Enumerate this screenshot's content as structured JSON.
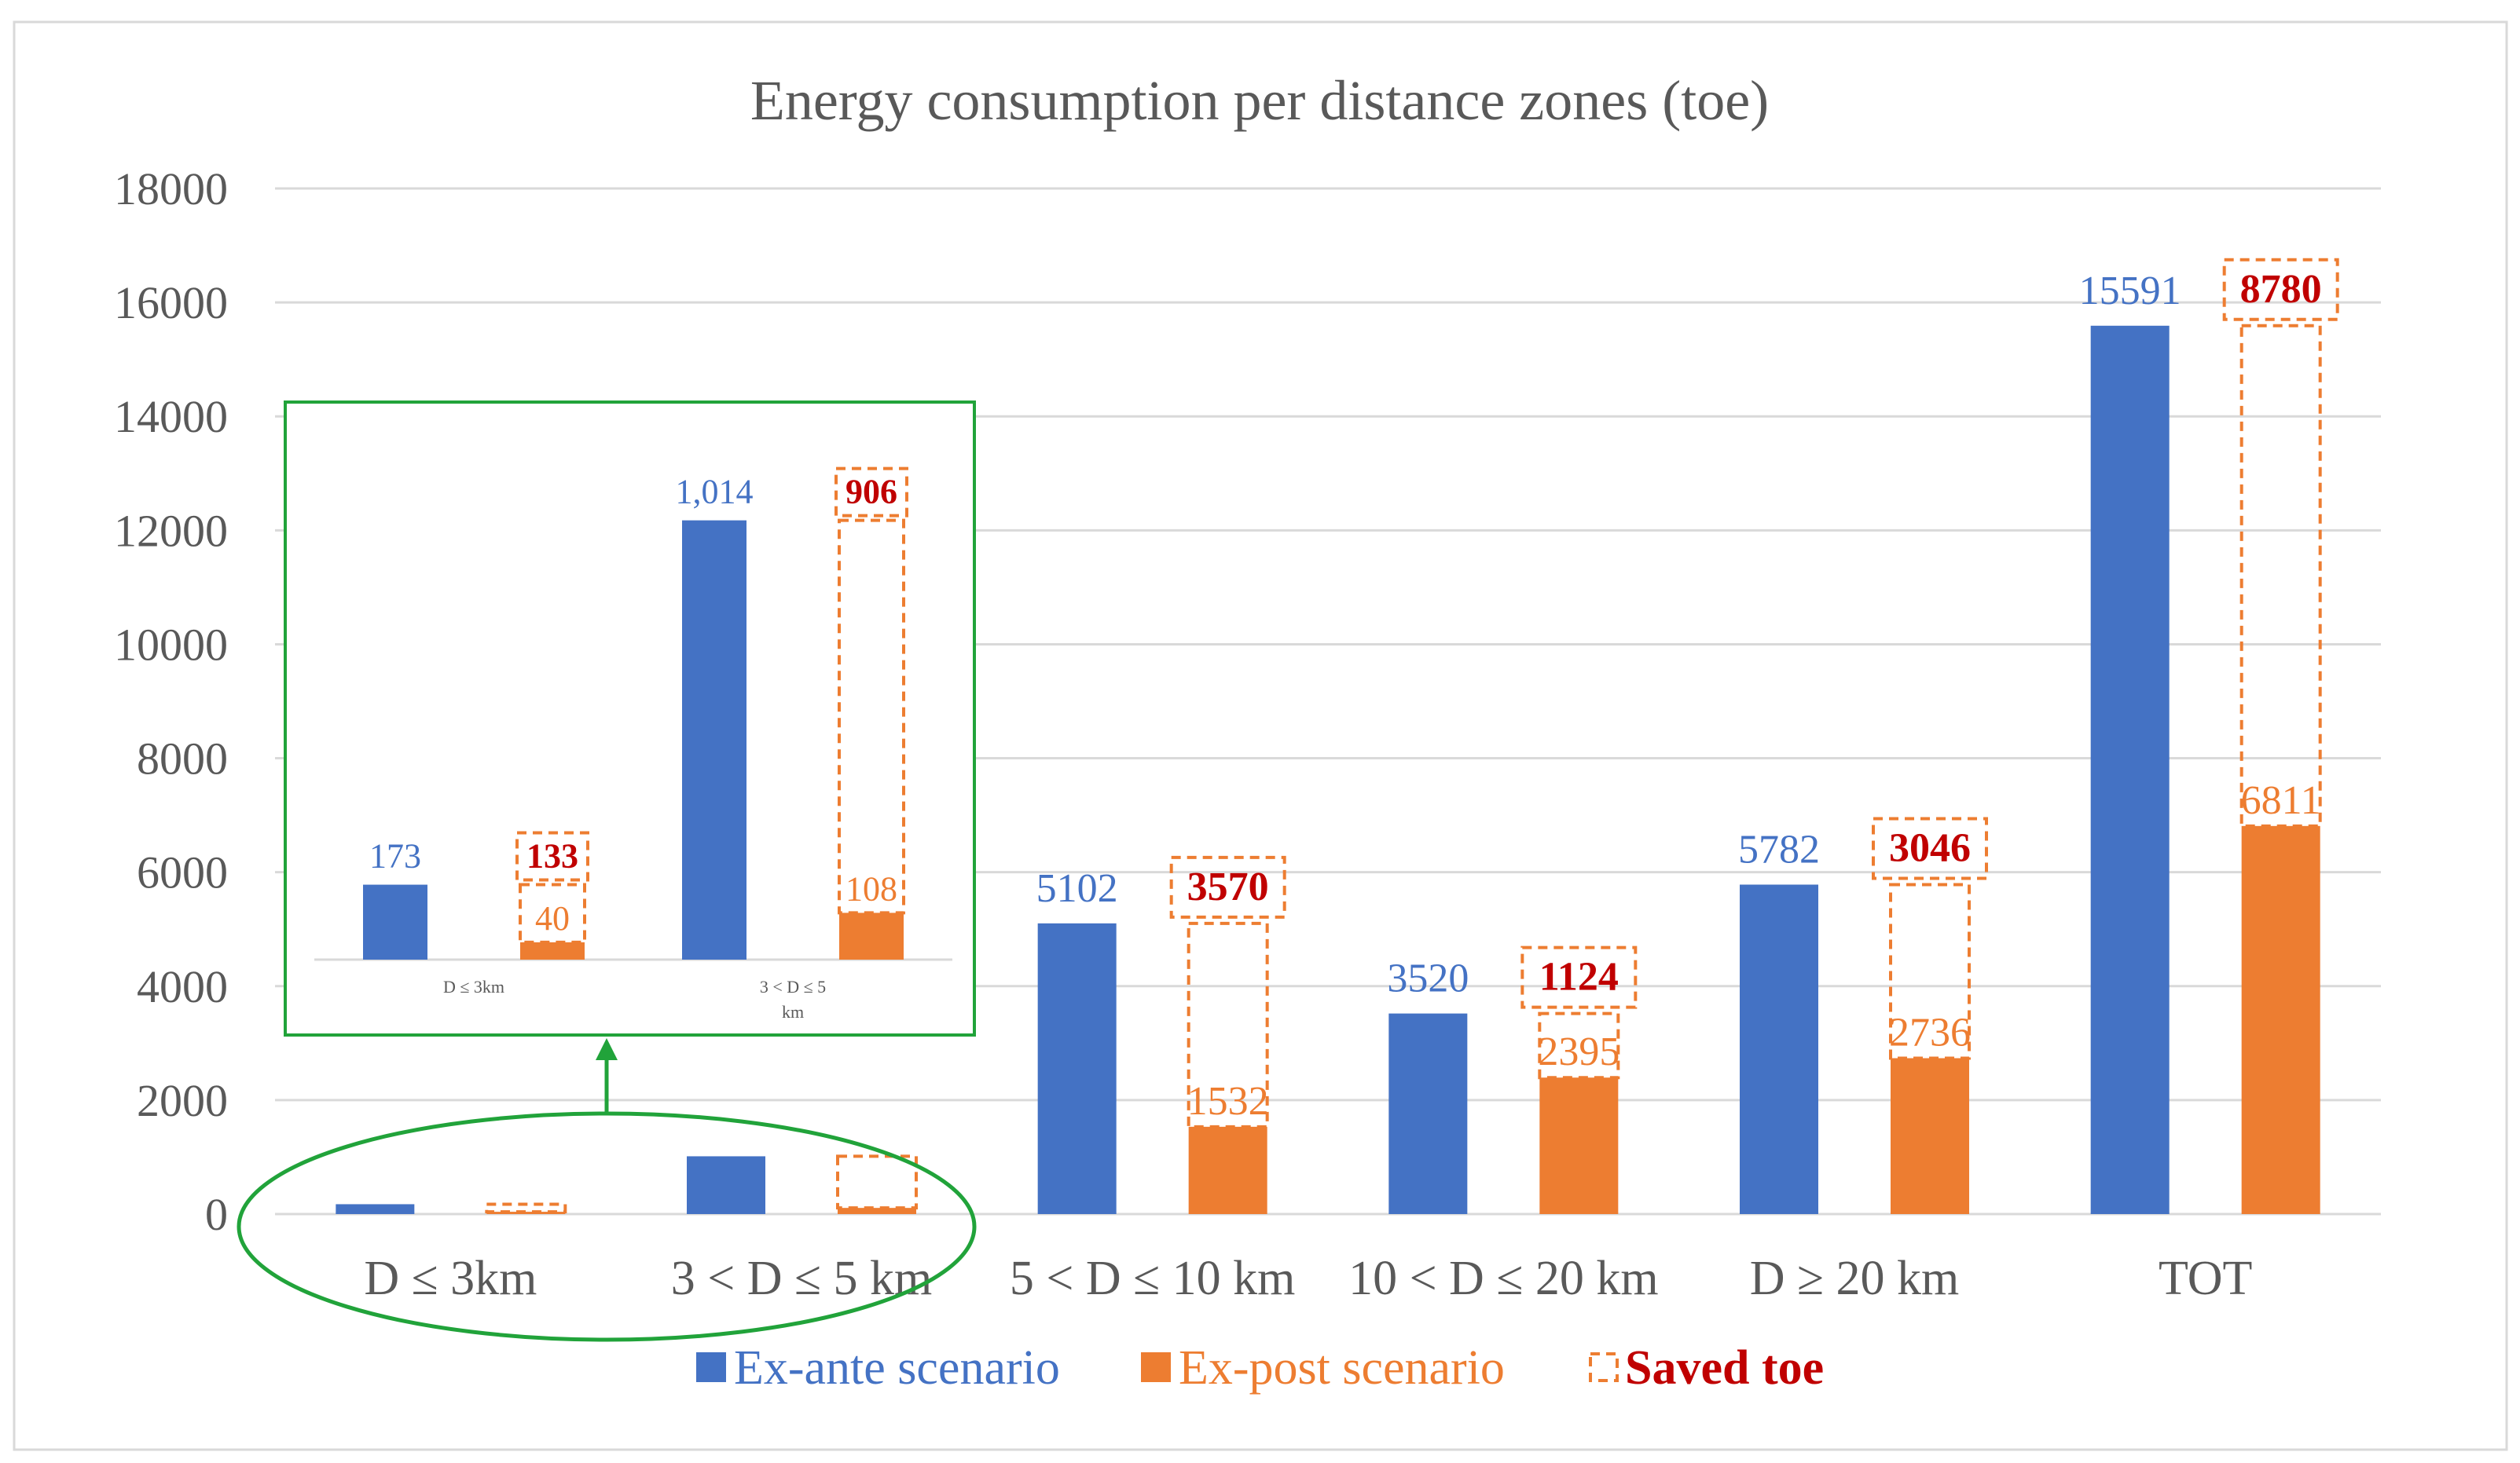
{
  "colors": {
    "ex_ante": "#4472c4",
    "ex_post": "#ed7d31",
    "saved": "#c00000",
    "highlight": "#21a33a"
  },
  "chart_data": {
    "type": "bar",
    "title": "Energy consumption per distance zones (toe)",
    "xlabel": "",
    "ylabel": "",
    "ylim": [
      0,
      18000
    ],
    "yticks": [
      0,
      2000,
      4000,
      6000,
      8000,
      10000,
      12000,
      14000,
      16000,
      18000
    ],
    "grid": true,
    "categories": [
      "D ≤ 3km",
      "3 < D ≤ 5 km",
      "5 < D ≤ 10 km",
      "10 < D ≤ 20 km",
      "D ≥ 20 km",
      "TOT"
    ],
    "series": [
      {
        "name": "Ex-ante scenario",
        "values": [
          173,
          1014,
          5102,
          3520,
          5782,
          15591
        ],
        "labels": [
          "",
          "",
          "5102",
          "3520",
          "5782",
          "15591"
        ]
      },
      {
        "name": "Ex-post scenario",
        "values": [
          40,
          108,
          1532,
          2395,
          2736,
          6811
        ],
        "labels": [
          "",
          "",
          "1532",
          "2395",
          "2736",
          "6811"
        ]
      }
    ],
    "saved": {
      "name": "Saved toe",
      "values": [
        133,
        906,
        3570,
        1124,
        3046,
        8780
      ],
      "labels": [
        "",
        "",
        "3570",
        "1124",
        "3046",
        "8780"
      ]
    },
    "legend": [
      "Ex-ante scenario",
      "Ex-post scenario",
      "Saved toe"
    ],
    "legend_position": "bottom",
    "inset": {
      "type": "bar",
      "categories": [
        "D ≤ 3km",
        "3 < D ≤ 5 km"
      ],
      "category_lines": [
        [
          "D ≤ 3km"
        ],
        [
          "3 < D ≤ 5",
          "km"
        ]
      ],
      "ylim": [
        0,
        1200
      ],
      "ex_ante": {
        "values": [
          173,
          1014
        ],
        "labels": [
          "173",
          "1,014"
        ]
      },
      "ex_post": {
        "values": [
          40,
          108
        ],
        "labels": [
          "40",
          "108"
        ]
      },
      "saved": {
        "values": [
          133,
          906
        ],
        "labels": [
          "133",
          "906"
        ]
      }
    }
  }
}
